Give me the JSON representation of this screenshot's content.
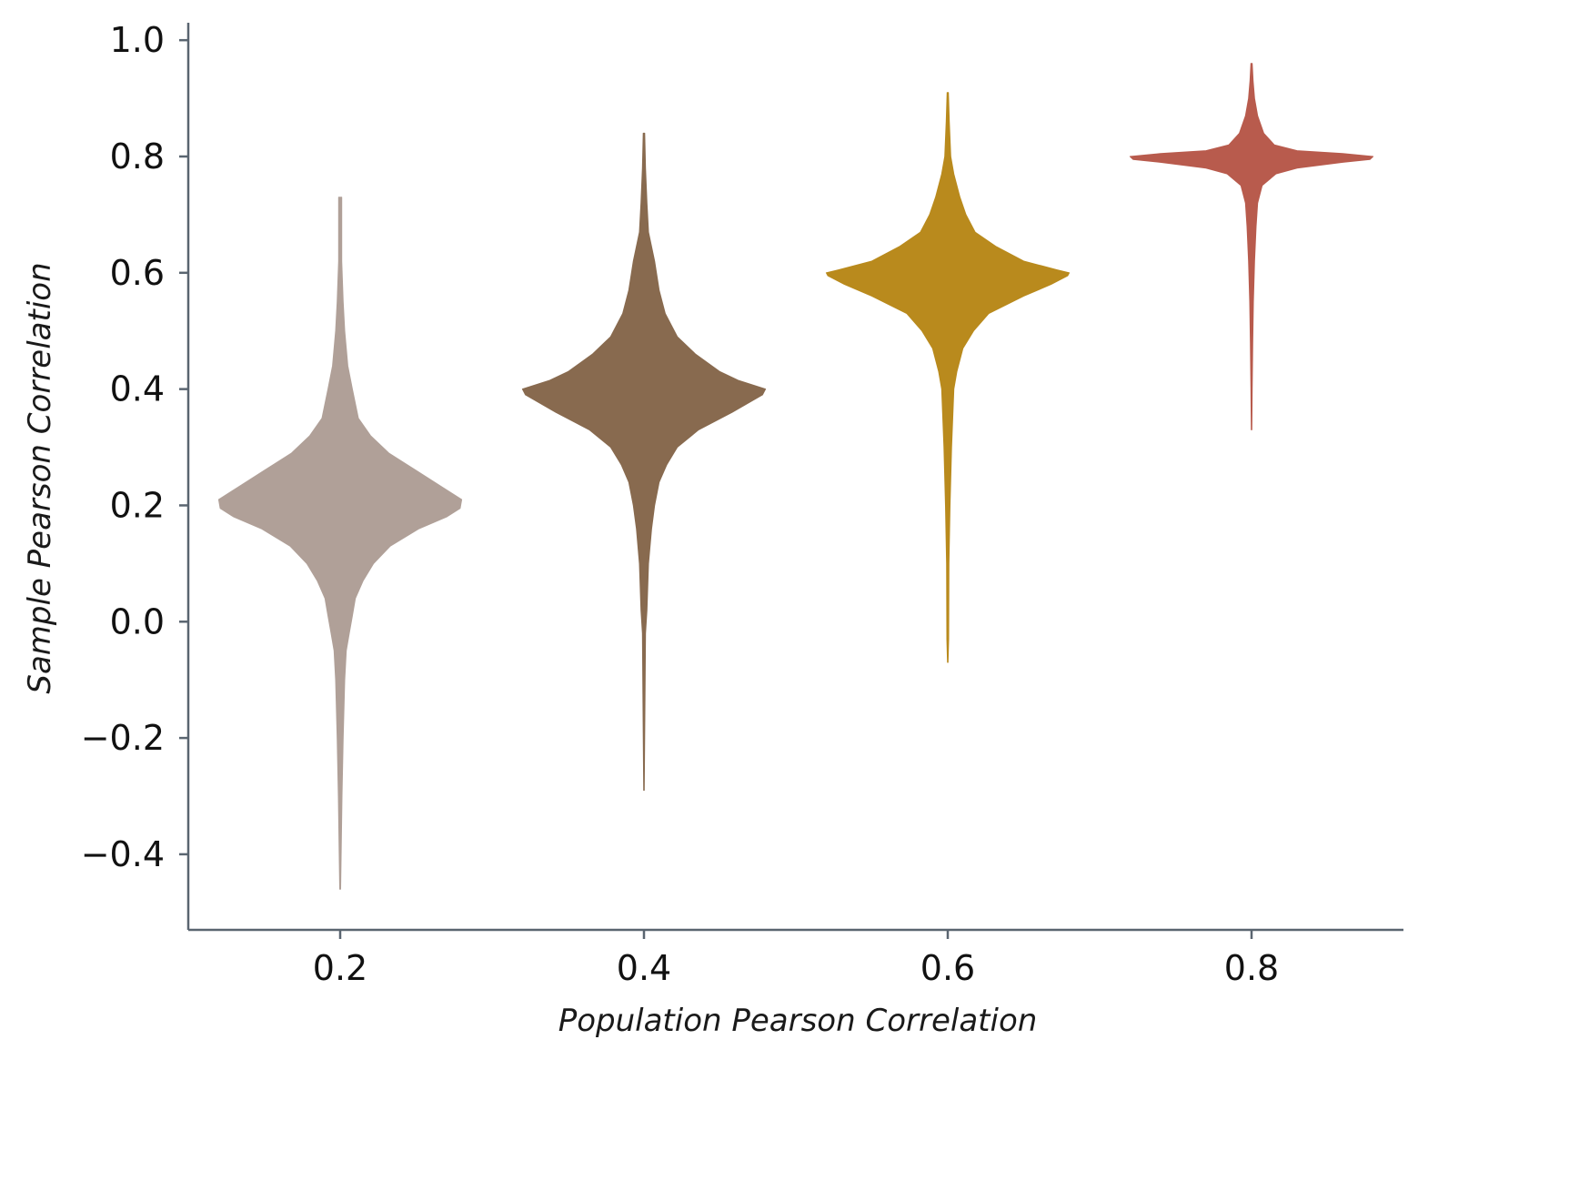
{
  "chart_data": {
    "type": "violin",
    "title": "",
    "xlabel": "Population Pearson Correlation",
    "ylabel": "Sample Pearson Correlation",
    "categories": [
      "0.2",
      "0.4",
      "0.6",
      "0.8"
    ],
    "x_positions": [
      0.2,
      0.4,
      0.6,
      0.8
    ],
    "x_ticks": [
      "0.2",
      "0.4",
      "0.6",
      "0.8"
    ],
    "xlim": [
      0.1,
      0.9
    ],
    "ylim": [
      -0.53,
      1.03
    ],
    "y_ticks": [
      "−0.4",
      "−0.2",
      "0.0",
      "0.2",
      "0.4",
      "0.6",
      "0.8",
      "1.0"
    ],
    "y_tick_values": [
      -0.4,
      -0.2,
      0.0,
      0.2,
      0.4,
      0.6,
      0.8,
      1.0
    ],
    "grid": false,
    "colors": [
      "#b0a098",
      "#886a4f",
      "#b98a1d",
      "#b85b4d"
    ],
    "axis_color": "#5a6570",
    "violins": [
      {
        "category": "0.2",
        "color": "#b0a098",
        "profile": [
          [
            0.73,
            0.001
          ],
          [
            0.62,
            0.001
          ],
          [
            0.55,
            0.002
          ],
          [
            0.5,
            0.003
          ],
          [
            0.44,
            0.005
          ],
          [
            0.4,
            0.008
          ],
          [
            0.35,
            0.012
          ],
          [
            0.32,
            0.02
          ],
          [
            0.29,
            0.032
          ],
          [
            0.26,
            0.05
          ],
          [
            0.23,
            0.068
          ],
          [
            0.21,
            0.08
          ],
          [
            0.195,
            0.079
          ],
          [
            0.18,
            0.07
          ],
          [
            0.16,
            0.052
          ],
          [
            0.13,
            0.033
          ],
          [
            0.1,
            0.022
          ],
          [
            0.07,
            0.015
          ],
          [
            0.04,
            0.01
          ],
          [
            0.01,
            0.008
          ],
          [
            -0.02,
            0.006
          ],
          [
            -0.05,
            0.004
          ],
          [
            -0.1,
            0.003
          ],
          [
            -0.2,
            0.002
          ],
          [
            -0.3,
            0.0012
          ],
          [
            -0.46,
            0.0003
          ]
        ]
      },
      {
        "category": "0.4",
        "color": "#886a4f",
        "profile": [
          [
            0.84,
            0.0005
          ],
          [
            0.78,
            0.001
          ],
          [
            0.72,
            0.002
          ],
          [
            0.67,
            0.003
          ],
          [
            0.62,
            0.007
          ],
          [
            0.57,
            0.01
          ],
          [
            0.53,
            0.014
          ],
          [
            0.49,
            0.022
          ],
          [
            0.46,
            0.034
          ],
          [
            0.43,
            0.05
          ],
          [
            0.415,
            0.062
          ],
          [
            0.4,
            0.08
          ],
          [
            0.39,
            0.078
          ],
          [
            0.36,
            0.058
          ],
          [
            0.33,
            0.036
          ],
          [
            0.3,
            0.022
          ],
          [
            0.27,
            0.015
          ],
          [
            0.24,
            0.01
          ],
          [
            0.2,
            0.007
          ],
          [
            0.16,
            0.005
          ],
          [
            0.1,
            0.003
          ],
          [
            0.02,
            0.002
          ],
          [
            -0.02,
            0.001
          ],
          [
            -0.1,
            0.0008
          ],
          [
            -0.29,
            0.0002
          ]
        ]
      },
      {
        "category": "0.6",
        "color": "#b98a1d",
        "profile": [
          [
            0.91,
            0.0004
          ],
          [
            0.86,
            0.001
          ],
          [
            0.8,
            0.002
          ],
          [
            0.77,
            0.004
          ],
          [
            0.73,
            0.008
          ],
          [
            0.7,
            0.012
          ],
          [
            0.67,
            0.018
          ],
          [
            0.645,
            0.032
          ],
          [
            0.62,
            0.05
          ],
          [
            0.605,
            0.072
          ],
          [
            0.6,
            0.08
          ],
          [
            0.595,
            0.079
          ],
          [
            0.58,
            0.068
          ],
          [
            0.56,
            0.05
          ],
          [
            0.53,
            0.027
          ],
          [
            0.5,
            0.017
          ],
          [
            0.47,
            0.01
          ],
          [
            0.43,
            0.006
          ],
          [
            0.4,
            0.004
          ],
          [
            0.3,
            0.0025
          ],
          [
            0.2,
            0.0015
          ],
          [
            0.1,
            0.0008
          ],
          [
            -0.03,
            0.0006
          ],
          [
            -0.07,
            0.0002
          ]
        ]
      },
      {
        "category": "0.8",
        "color": "#b85b4d",
        "profile": [
          [
            0.96,
            0.0004
          ],
          [
            0.93,
            0.001
          ],
          [
            0.9,
            0.002
          ],
          [
            0.87,
            0.004
          ],
          [
            0.84,
            0.008
          ],
          [
            0.82,
            0.015
          ],
          [
            0.81,
            0.03
          ],
          [
            0.805,
            0.06
          ],
          [
            0.8,
            0.08
          ],
          [
            0.795,
            0.078
          ],
          [
            0.79,
            0.06
          ],
          [
            0.78,
            0.03
          ],
          [
            0.77,
            0.016
          ],
          [
            0.75,
            0.007
          ],
          [
            0.72,
            0.004
          ],
          [
            0.68,
            0.003
          ],
          [
            0.62,
            0.002
          ],
          [
            0.55,
            0.0012
          ],
          [
            0.48,
            0.0008
          ],
          [
            0.4,
            0.0004
          ],
          [
            0.33,
            0.0002
          ]
        ]
      }
    ]
  }
}
